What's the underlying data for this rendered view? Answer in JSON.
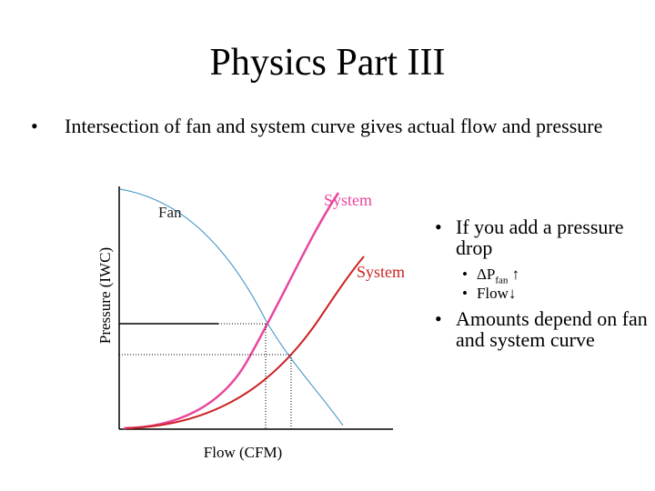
{
  "slide": {
    "title": "Physics Part III",
    "bullet_main": "Intersection of fan and system curve gives actual flow and pressure"
  },
  "diagram": {
    "ylabel": "Pressure (IWC)",
    "xlabel": "Flow (CFM)",
    "label_fan": "Fan",
    "label_system_original": "System",
    "label_system_new": "System",
    "colors": {
      "fan": "#3a8fc6",
      "system_original": "#cc2222",
      "system_new": "#e8479c",
      "axes": "#000000",
      "guides": "#000000"
    }
  },
  "side": {
    "bullet1": "If you add a pressure drop",
    "sub1_symbol": "ΔP",
    "sub1_subscript": "fan",
    "sub1_arrow": "↑",
    "sub2_text": "Flow",
    "sub2_arrow": "↓",
    "bullet2": "Amounts depend on fan and system curve"
  }
}
